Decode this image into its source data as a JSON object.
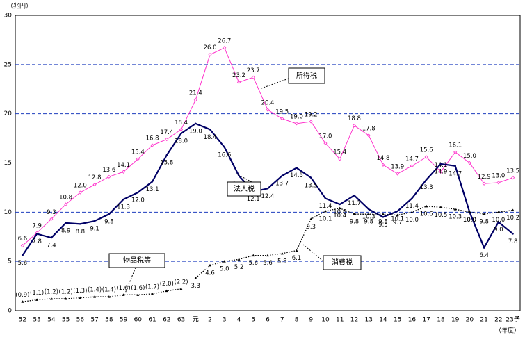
{
  "chart_data": {
    "type": "line",
    "y_unit": "（兆円）",
    "x_unit": "（年度）",
    "categories": [
      "52",
      "53",
      "54",
      "55",
      "56",
      "57",
      "58",
      "59",
      "60",
      "61",
      "62",
      "63",
      "元",
      "2",
      "3",
      "4",
      "5",
      "6",
      "7",
      "8",
      "9",
      "10",
      "11",
      "12",
      "13",
      "14",
      "15",
      "16",
      "17",
      "18",
      "19",
      "20",
      "21",
      "22",
      "23予"
    ],
    "ylim": [
      0,
      30
    ],
    "yticks": [
      0,
      5,
      10,
      15,
      20,
      25,
      30
    ],
    "grid": true,
    "series": [
      {
        "name": "所得税",
        "color": "#ff33cc",
        "label_position": "above",
        "values": [
          6.6,
          7.9,
          9.3,
          10.8,
          12.0,
          12.8,
          13.6,
          14.1,
          15.4,
          16.8,
          17.4,
          18.4,
          21.4,
          26.0,
          26.7,
          23.2,
          23.7,
          20.4,
          19.5,
          19.0,
          19.2,
          17.0,
          15.4,
          18.8,
          17.8,
          14.8,
          13.9,
          14.7,
          15.6,
          14.1,
          16.1,
          15.0,
          12.9,
          13.0,
          13.5
        ],
        "value_labels": [
          "6.6",
          "7.9",
          "9.3",
          "10.8",
          "12.0",
          "12.8",
          "13.6",
          "14.1",
          "15.4",
          "16.8",
          "17.4",
          "18.4",
          "21.4",
          "26.0",
          "26.7",
          "23.2",
          "23.7",
          "20.4",
          "19.5",
          "19.0",
          "19.2",
          "17.0",
          "15.4",
          "18.8",
          "17.8",
          "14.8",
          "13.9",
          "14.7",
          "15.6",
          "14.1",
          "16.1",
          "15.0",
          "12.9",
          "13.0",
          "13.5"
        ]
      },
      {
        "name": "法人税",
        "color": "#000066",
        "label_position": "below",
        "values": [
          5.6,
          7.8,
          7.4,
          8.9,
          8.8,
          9.1,
          9.8,
          11.3,
          12.0,
          13.1,
          15.8,
          18.0,
          19.0,
          18.4,
          16.6,
          13.7,
          12.1,
          12.4,
          13.7,
          14.5,
          13.5,
          11.4,
          10.8,
          11.7,
          10.3,
          9.5,
          10.1,
          11.4,
          13.3,
          14.9,
          14.7,
          10.0,
          6.4,
          9.0,
          7.8
        ],
        "value_labels": [
          "5.6",
          "7.8",
          "7.4",
          "8.9",
          "8.8",
          "9.1",
          "9.8",
          "11.3",
          "12.0",
          "13.1",
          "15.8",
          "18.0",
          "19.0",
          "18.4",
          "16.6",
          "13.7",
          "12.1",
          "12.4",
          "13.7",
          "14.5",
          "13.5",
          "11.4",
          "10.8",
          "11.7",
          "10.3",
          "9.5",
          "10.1",
          "11.4",
          "13.3",
          "14.9",
          "14.7",
          "10.0",
          "6.4",
          "9.0",
          "7.8"
        ]
      },
      {
        "name": "物品税等",
        "color": "#000000",
        "label_position": "above",
        "values": [
          0.9,
          1.1,
          1.2,
          1.2,
          1.3,
          1.4,
          1.4,
          1.6,
          1.6,
          1.7,
          2.0,
          2.2,
          null,
          null,
          null,
          null,
          null,
          null,
          null,
          null,
          null,
          null,
          null,
          null,
          null,
          null,
          null,
          null,
          null,
          null,
          null,
          null,
          null,
          null,
          null
        ],
        "value_labels": [
          "(0.9)",
          "(1.1)",
          "(1.2)",
          "(1.2)",
          "(1.3)",
          "(1.4)",
          "(1.4)",
          "(1.6)",
          "(1.6)",
          "(1.7)",
          "(2.0)",
          "(2.2)",
          null,
          null,
          null,
          null,
          null,
          null,
          null,
          null,
          null,
          null,
          null,
          null,
          null,
          null,
          null,
          null,
          null,
          null,
          null,
          null,
          null,
          null,
          null
        ]
      },
      {
        "name": "消費税",
        "color": "#000000",
        "label_position": "below",
        "values": [
          null,
          null,
          null,
          null,
          null,
          null,
          null,
          null,
          null,
          null,
          null,
          null,
          3.3,
          4.6,
          5.0,
          5.2,
          5.6,
          5.6,
          5.8,
          6.1,
          9.3,
          10.1,
          10.4,
          9.8,
          9.8,
          9.8,
          9.7,
          10.0,
          10.6,
          10.5,
          10.3,
          10.0,
          9.8,
          10.0,
          10.2
        ],
        "value_labels": [
          null,
          null,
          null,
          null,
          null,
          null,
          null,
          null,
          null,
          null,
          null,
          null,
          "3.3",
          "4.6",
          "5.0",
          "5.2",
          "5.6",
          "5.6",
          "5.8",
          "6.1",
          "9.3",
          "10.1",
          "10.4",
          "9.8",
          "9.8",
          "9.8",
          "9.7",
          "10.0",
          "10.6",
          "10.5",
          "10.3",
          "10.0",
          "9.8",
          "10.0",
          "10.2"
        ]
      }
    ]
  }
}
